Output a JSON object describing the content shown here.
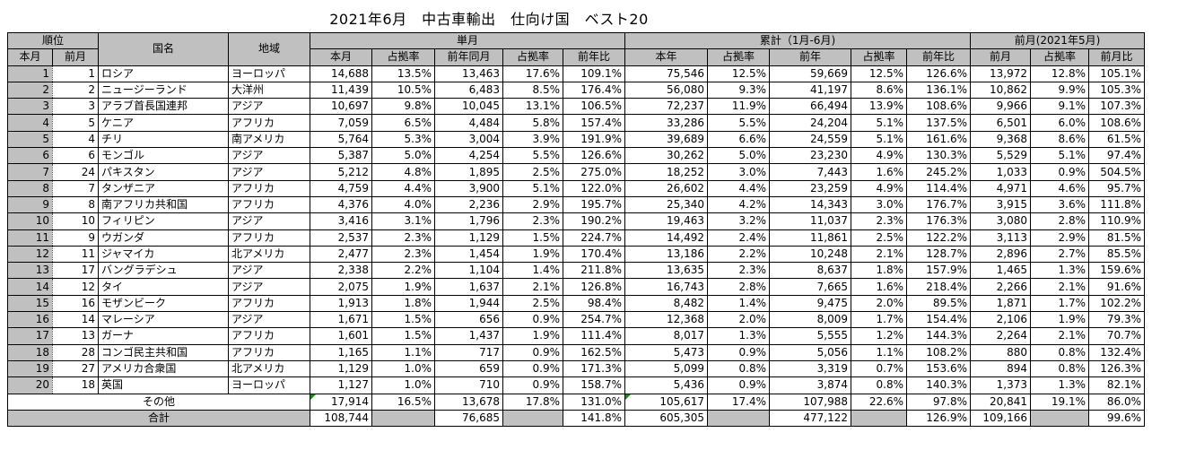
{
  "title": "2021年6月　中古車輸出　仕向け国　ベスト20",
  "headers": {
    "rank": "順位",
    "rank_current": "本月",
    "rank_prev": "前月",
    "country": "国名",
    "region": "地域",
    "monthly": "単月",
    "cumulative": "累計（1月-6月)",
    "prev_month": "前月(2021年5月)",
    "sub": [
      "本月",
      "占拠率",
      "前年同月",
      "占拠率",
      "前年比",
      "本年",
      "占拠率",
      "前年",
      "占拠率",
      "前年比",
      "前月",
      "占拠率",
      "前月比"
    ]
  },
  "rows": [
    {
      "rank": "1",
      "prev_rank": "1",
      "country": "ロシア",
      "region": "ヨーロッパ",
      "v": [
        "14,688",
        "13.5%",
        "13,463",
        "17.6%",
        "109.1%",
        "75,546",
        "12.5%",
        "59,669",
        "12.5%",
        "126.6%",
        "13,972",
        "12.8%",
        "105.1%"
      ]
    },
    {
      "rank": "2",
      "prev_rank": "2",
      "country": "ニュージーランド",
      "region": "大洋州",
      "v": [
        "11,439",
        "10.5%",
        "6,483",
        "8.5%",
        "176.4%",
        "56,080",
        "9.3%",
        "41,197",
        "8.6%",
        "136.1%",
        "10,862",
        "9.9%",
        "105.3%"
      ]
    },
    {
      "rank": "3",
      "prev_rank": "3",
      "country": "アラブ首長国連邦",
      "region": "アジア",
      "v": [
        "10,697",
        "9.8%",
        "10,045",
        "13.1%",
        "106.5%",
        "72,237",
        "11.9%",
        "66,494",
        "13.9%",
        "108.6%",
        "9,966",
        "9.1%",
        "107.3%"
      ]
    },
    {
      "rank": "4",
      "prev_rank": "5",
      "country": "ケニア",
      "region": "アフリカ",
      "v": [
        "7,059",
        "6.5%",
        "4,484",
        "5.8%",
        "157.4%",
        "33,286",
        "5.5%",
        "24,204",
        "5.1%",
        "137.5%",
        "6,501",
        "6.0%",
        "108.6%"
      ]
    },
    {
      "rank": "5",
      "prev_rank": "4",
      "country": "チリ",
      "region": "南アメリカ",
      "v": [
        "5,764",
        "5.3%",
        "3,004",
        "3.9%",
        "191.9%",
        "39,689",
        "6.6%",
        "24,559",
        "5.1%",
        "161.6%",
        "9,368",
        "8.6%",
        "61.5%"
      ]
    },
    {
      "rank": "6",
      "prev_rank": "6",
      "country": "モンゴル",
      "region": "アジア",
      "v": [
        "5,387",
        "5.0%",
        "4,254",
        "5.5%",
        "126.6%",
        "30,262",
        "5.0%",
        "23,230",
        "4.9%",
        "130.3%",
        "5,529",
        "5.1%",
        "97.4%"
      ]
    },
    {
      "rank": "7",
      "prev_rank": "24",
      "country": "パキスタン",
      "region": "アジア",
      "v": [
        "5,212",
        "4.8%",
        "1,895",
        "2.5%",
        "275.0%",
        "18,252",
        "3.0%",
        "7,443",
        "1.6%",
        "245.2%",
        "1,033",
        "0.9%",
        "504.5%"
      ]
    },
    {
      "rank": "8",
      "prev_rank": "7",
      "country": "タンザニア",
      "region": "アフリカ",
      "v": [
        "4,759",
        "4.4%",
        "3,900",
        "5.1%",
        "122.0%",
        "26,602",
        "4.4%",
        "23,259",
        "4.9%",
        "114.4%",
        "4,971",
        "4.6%",
        "95.7%"
      ]
    },
    {
      "rank": "9",
      "prev_rank": "8",
      "country": "南アフリカ共和国",
      "region": "アフリカ",
      "v": [
        "4,376",
        "4.0%",
        "2,236",
        "2.9%",
        "195.7%",
        "25,340",
        "4.2%",
        "14,343",
        "3.0%",
        "176.7%",
        "3,915",
        "3.6%",
        "111.8%"
      ]
    },
    {
      "rank": "10",
      "prev_rank": "10",
      "country": "フィリピン",
      "region": "アジア",
      "v": [
        "3,416",
        "3.1%",
        "1,796",
        "2.3%",
        "190.2%",
        "19,463",
        "3.2%",
        "11,037",
        "2.3%",
        "176.3%",
        "3,080",
        "2.8%",
        "110.9%"
      ]
    },
    {
      "rank": "11",
      "prev_rank": "9",
      "country": "ウガンダ",
      "region": "アフリカ",
      "v": [
        "2,537",
        "2.3%",
        "1,129",
        "1.5%",
        "224.7%",
        "14,492",
        "2.4%",
        "11,861",
        "2.5%",
        "122.2%",
        "3,113",
        "2.9%",
        "81.5%"
      ]
    },
    {
      "rank": "12",
      "prev_rank": "11",
      "country": "ジャマイカ",
      "region": "北アメリカ",
      "v": [
        "2,477",
        "2.3%",
        "1,454",
        "1.9%",
        "170.4%",
        "13,186",
        "2.2%",
        "10,248",
        "2.1%",
        "128.7%",
        "2,896",
        "2.7%",
        "85.5%"
      ]
    },
    {
      "rank": "13",
      "prev_rank": "17",
      "country": "バングラデシュ",
      "region": "アジア",
      "v": [
        "2,338",
        "2.2%",
        "1,104",
        "1.4%",
        "211.8%",
        "13,635",
        "2.3%",
        "8,637",
        "1.8%",
        "157.9%",
        "1,465",
        "1.3%",
        "159.6%"
      ]
    },
    {
      "rank": "14",
      "prev_rank": "12",
      "country": "タイ",
      "region": "アジア",
      "v": [
        "2,075",
        "1.9%",
        "1,637",
        "2.1%",
        "126.8%",
        "16,743",
        "2.8%",
        "7,665",
        "1.6%",
        "218.4%",
        "2,266",
        "2.1%",
        "91.6%"
      ]
    },
    {
      "rank": "15",
      "prev_rank": "16",
      "country": "モザンビーク",
      "region": "アフリカ",
      "v": [
        "1,913",
        "1.8%",
        "1,944",
        "2.5%",
        "98.4%",
        "8,482",
        "1.4%",
        "9,475",
        "2.0%",
        "89.5%",
        "1,871",
        "1.7%",
        "102.2%"
      ]
    },
    {
      "rank": "16",
      "prev_rank": "14",
      "country": "マレーシア",
      "region": "アジア",
      "v": [
        "1,671",
        "1.5%",
        "656",
        "0.9%",
        "254.7%",
        "12,368",
        "2.0%",
        "8,009",
        "1.7%",
        "154.4%",
        "2,106",
        "1.9%",
        "79.3%"
      ]
    },
    {
      "rank": "17",
      "prev_rank": "13",
      "country": "ガーナ",
      "region": "アフリカ",
      "v": [
        "1,601",
        "1.5%",
        "1,437",
        "1.9%",
        "111.4%",
        "8,017",
        "1.3%",
        "5,555",
        "1.2%",
        "144.3%",
        "2,264",
        "2.1%",
        "70.7%"
      ]
    },
    {
      "rank": "18",
      "prev_rank": "28",
      "country": "コンゴ民主共和国",
      "region": "アフリカ",
      "v": [
        "1,165",
        "1.1%",
        "717",
        "0.9%",
        "162.5%",
        "5,473",
        "0.9%",
        "5,056",
        "1.1%",
        "108.2%",
        "880",
        "0.8%",
        "132.4%"
      ]
    },
    {
      "rank": "19",
      "prev_rank": "27",
      "country": "アメリカ合衆国",
      "region": "北アメリカ",
      "v": [
        "1,129",
        "1.0%",
        "659",
        "0.9%",
        "171.3%",
        "5,099",
        "0.8%",
        "3,319",
        "0.7%",
        "153.6%",
        "894",
        "0.8%",
        "126.3%"
      ]
    },
    {
      "rank": "20",
      "prev_rank": "18",
      "country": "英国",
      "region": "ヨーロッパ",
      "v": [
        "1,127",
        "1.0%",
        "710",
        "0.9%",
        "158.7%",
        "5,436",
        "0.9%",
        "3,874",
        "0.8%",
        "140.3%",
        "1,373",
        "1.3%",
        "82.1%"
      ]
    }
  ],
  "other": {
    "label": "その他",
    "v": [
      "17,914",
      "16.5%",
      "13,678",
      "17.8%",
      "131.0%",
      "105,617",
      "17.4%",
      "107,988",
      "22.6%",
      "97.8%",
      "20,841",
      "19.1%",
      "86.0%"
    ]
  },
  "total": {
    "label": "合計",
    "v": [
      "108,744",
      "",
      "76,685",
      "",
      "141.8%",
      "605,305",
      "",
      "477,122",
      "",
      "126.9%",
      "109,166",
      "",
      "99.6%"
    ]
  }
}
